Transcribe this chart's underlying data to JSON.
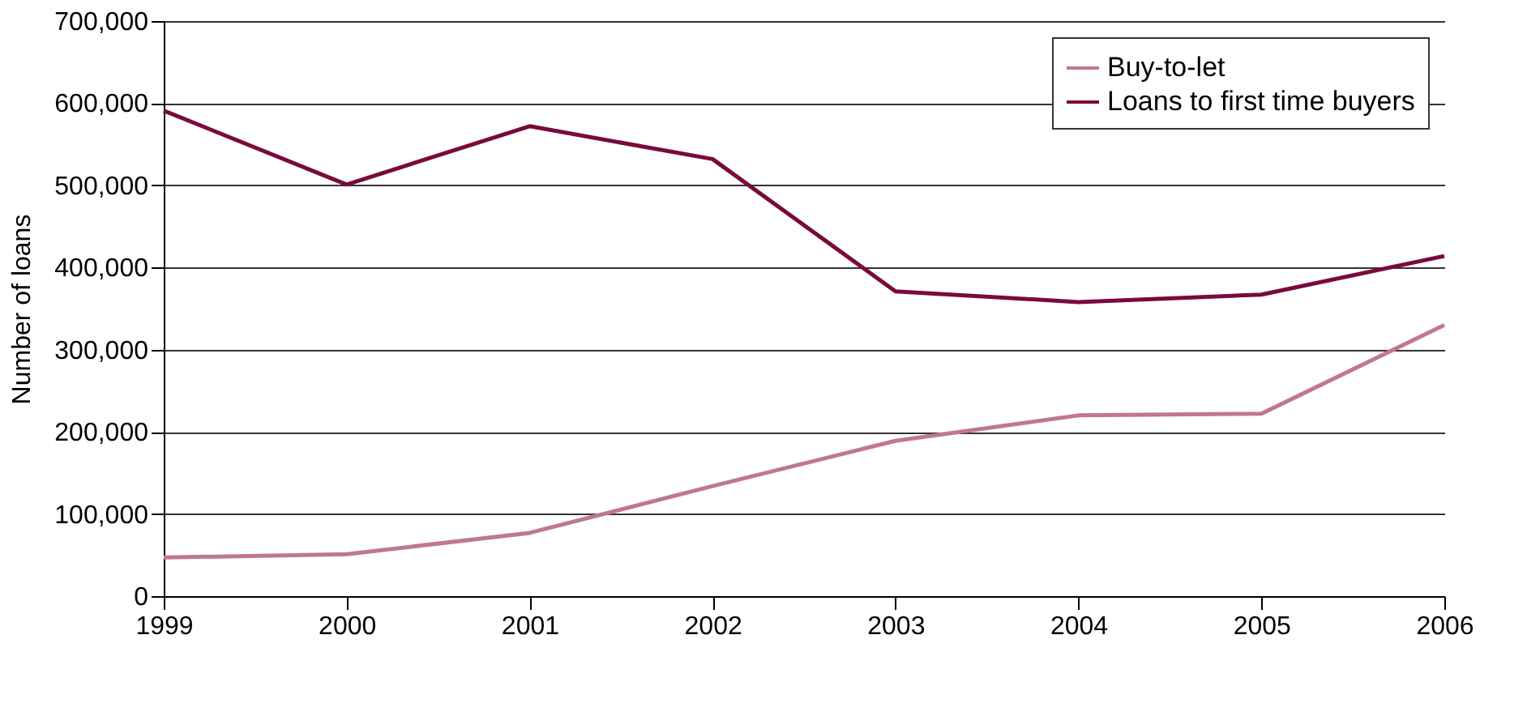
{
  "chart_data": {
    "type": "line",
    "ylabel": "Number of loans",
    "x": [
      1999,
      2000,
      2001,
      2002,
      2003,
      2004,
      2005,
      2006
    ],
    "series": [
      {
        "name": "Buy-to-let",
        "color": "#c0778f",
        "values": [
          47000,
          51000,
          77000,
          134000,
          189000,
          220000,
          222000,
          330000
        ]
      },
      {
        "name": "Loans to first time buyers",
        "color": "#7a0a3c",
        "values": [
          591000,
          501000,
          572000,
          532000,
          371000,
          358000,
          367000,
          414000
        ]
      }
    ],
    "xlim": [
      1999,
      2006
    ],
    "xticks": [
      1999,
      2000,
      2001,
      2002,
      2003,
      2004,
      2005,
      2006
    ],
    "ylim": [
      0,
      700000
    ],
    "yticks": [
      {
        "value": 0,
        "label": "0"
      },
      {
        "value": 100000,
        "label": "100,000"
      },
      {
        "value": 200000,
        "label": "200,000"
      },
      {
        "value": 300000,
        "label": "300,000"
      },
      {
        "value": 400000,
        "label": "400,000"
      },
      {
        "value": 500000,
        "label": "500,000"
      },
      {
        "value": 600000,
        "label": "600,000"
      },
      {
        "value": 700000,
        "label": "700,000"
      }
    ],
    "grid": "y",
    "legend": "top right",
    "marker": "none",
    "line_style": "solid"
  }
}
